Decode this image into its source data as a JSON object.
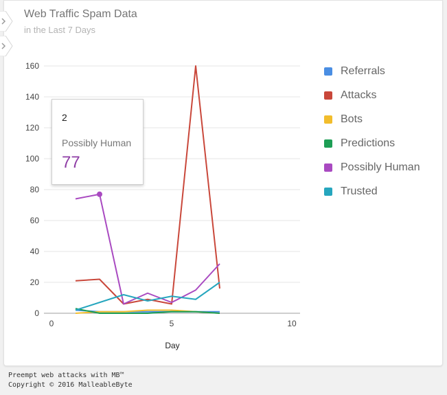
{
  "header": {
    "title": "Web Traffic Spam Data",
    "subtitle": "in the Last 7 Days"
  },
  "side_tabs": [
    {
      "icon": "chevron-right-icon"
    },
    {
      "icon": "chevron-right-icon"
    }
  ],
  "tooltip": {
    "x": "2",
    "series": "Possibly Human",
    "value": "77"
  },
  "footer": {
    "line1": "Preempt web attacks with MB™",
    "line2": "Copyright © 2016 MalleableByte"
  },
  "chart_data": {
    "type": "line",
    "title": "",
    "xlabel": "Day",
    "ylabel": "",
    "xlim": [
      0,
      10
    ],
    "ylim": [
      0,
      160
    ],
    "x_ticks": [
      "0",
      "5",
      "10"
    ],
    "y_ticks": [
      "0",
      "20",
      "40",
      "60",
      "80",
      "100",
      "120",
      "140",
      "160"
    ],
    "grid": true,
    "legend_position": "right",
    "x": [
      1,
      2,
      3,
      4,
      5,
      6,
      7
    ],
    "series": [
      {
        "name": "Referrals",
        "color": "#4a8ee3",
        "values": [
          2,
          1,
          1,
          1,
          1,
          1,
          1
        ]
      },
      {
        "name": "Attacks",
        "color": "#c9473a",
        "values": [
          21,
          22,
          6,
          9,
          6,
          160,
          16
        ]
      },
      {
        "name": "Bots",
        "color": "#f2bd2c",
        "values": [
          0,
          1,
          1,
          2,
          2,
          1,
          0
        ]
      },
      {
        "name": "Predictions",
        "color": "#1d9e55",
        "values": [
          3,
          0,
          0,
          0,
          1,
          1,
          0
        ]
      },
      {
        "name": "Possibly Human",
        "color": "#a94ac1",
        "values": [
          74,
          77,
          6,
          13,
          7,
          15,
          32
        ]
      },
      {
        "name": "Trusted",
        "color": "#26a6be",
        "values": [
          2,
          7,
          12,
          8,
          11,
          9,
          20
        ]
      }
    ],
    "highlight": {
      "series": "Possibly Human",
      "x": 2,
      "y": 77
    }
  }
}
